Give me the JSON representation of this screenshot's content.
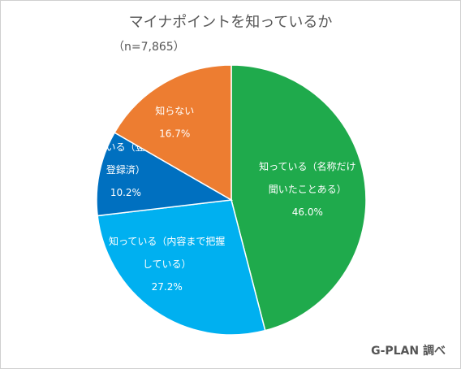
{
  "chart_data": {
    "type": "pie",
    "title": "マイナポイントを知っているか",
    "subtitle": "（n=7,865）",
    "slices": [
      {
        "label_lines": [
          "知っている（名称だけ",
          "聞いたことある）"
        ],
        "value": 46.0,
        "value_label": "46.0%",
        "color": "#1FAA4C"
      },
      {
        "label_lines": [
          "知っている（内容まで把握",
          "している）"
        ],
        "value": 27.2,
        "value_label": "27.2%",
        "color": "#00B0F0"
      },
      {
        "label_lines": [
          "知っている（登録中or",
          "登録済）"
        ],
        "value": 10.2,
        "value_label": "10.2%",
        "color": "#0070C0"
      },
      {
        "label_lines": [
          "知らない"
        ],
        "value": 16.7,
        "value_label": "16.7%",
        "color": "#ED7D31"
      }
    ],
    "start": "12 o'clock",
    "direction": "clockwise"
  },
  "credit": "G-PLAN 調べ"
}
